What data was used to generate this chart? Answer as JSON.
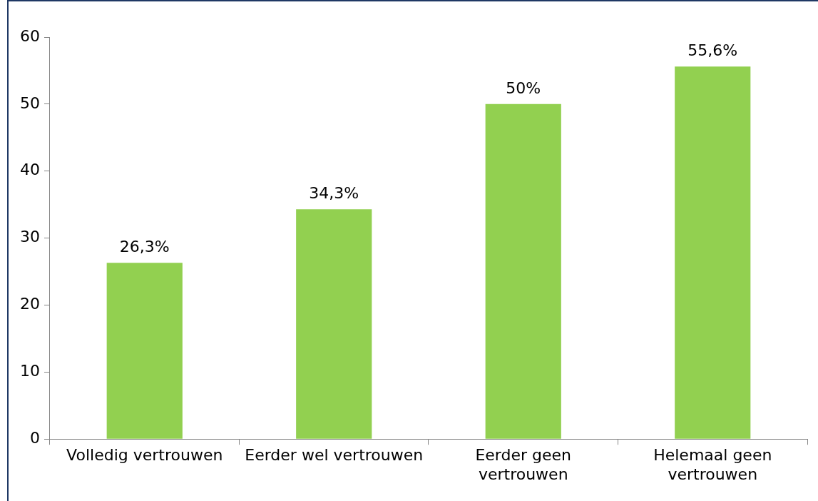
{
  "chart_data": {
    "type": "bar",
    "categories": [
      "Volledig vertrouwen",
      "Eerder wel vertrouwen",
      "Eerder geen vertrouwen",
      "Helemaal geen vertrouwen"
    ],
    "values": [
      26.3,
      34.3,
      50,
      55.6
    ],
    "value_labels": [
      "26,3%",
      "34,3%",
      "50%",
      "55,6%"
    ],
    "color": "#92d050",
    "ylim": [
      0,
      60
    ],
    "yticks": [
      0,
      10,
      20,
      30,
      40,
      50,
      60
    ],
    "grid": false,
    "legend": false
  }
}
